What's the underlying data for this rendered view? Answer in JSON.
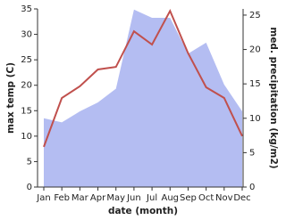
{
  "chart_data": {
    "type": "line-area",
    "categories": [
      "Jan",
      "Feb",
      "Mar",
      "Apr",
      "May",
      "Jun",
      "Jul",
      "Aug",
      "Sep",
      "Oct",
      "Nov",
      "Dec"
    ],
    "x_label": "date (month)",
    "y_label": "max temp (C)",
    "y2_label": "med. precipitation (kg/m2)",
    "ylim": [
      0,
      35
    ],
    "yticks": [
      0,
      5,
      10,
      15,
      20,
      25,
      30,
      35
    ],
    "y2lim": [
      0,
      25.9
    ],
    "y2ticks": [
      0,
      5,
      10,
      15,
      20,
      25
    ],
    "series": [
      {
        "kind": "area",
        "axis": "y2",
        "color": "#b4bdf2",
        "values": [
          10,
          9.4,
          11,
          12.3,
          14.3,
          25.8,
          24.6,
          24.6,
          19.4,
          21,
          14.9,
          11
        ]
      },
      {
        "kind": "line",
        "axis": "y",
        "color": "#c0504d",
        "values": [
          7.9,
          17.5,
          19.8,
          23.1,
          23.6,
          30.6,
          28,
          34.6,
          26.3,
          19.6,
          17.5,
          10
        ]
      }
    ]
  }
}
